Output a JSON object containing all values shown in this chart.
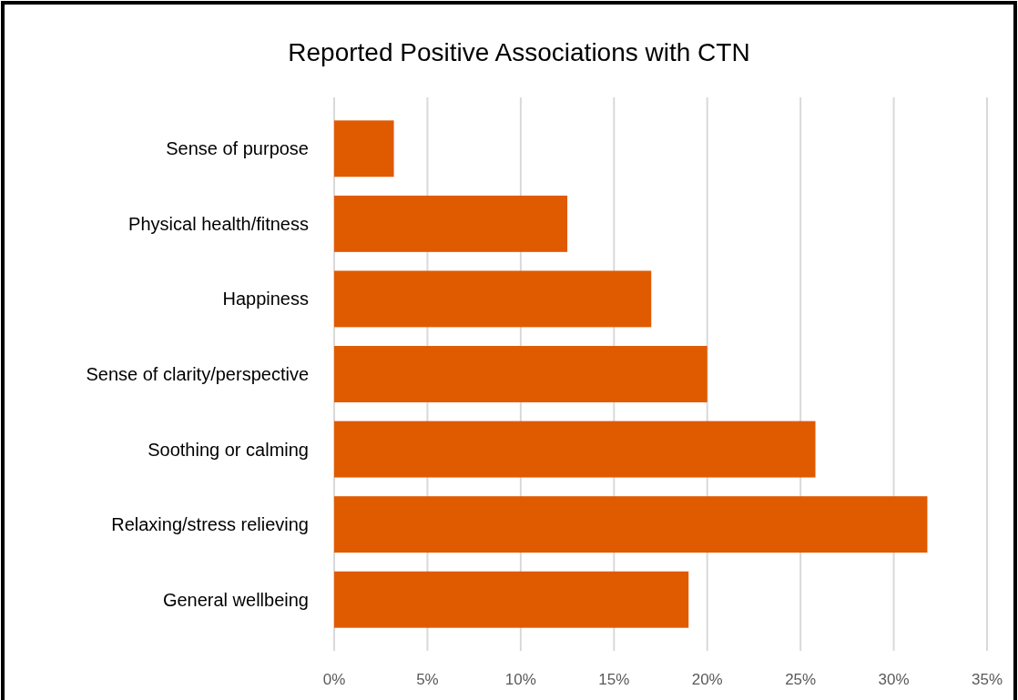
{
  "chart_data": {
    "type": "bar",
    "orientation": "horizontal",
    "title": "Reported Positive Associations with CTN",
    "categories": [
      "Sense of purpose",
      "Physical health/fitness",
      "Happiness",
      "Sense of clarity/perspective",
      "Soothing or calming",
      "Relaxing/stress relieving",
      "General wellbeing"
    ],
    "values": [
      3.2,
      12.5,
      17.0,
      20.0,
      25.8,
      31.8,
      19.0
    ],
    "color": "#e05a00",
    "xlim": [
      0,
      35
    ],
    "xticks": [
      {
        "value": 0,
        "label": "0%"
      },
      {
        "value": 5,
        "label": "5%"
      },
      {
        "value": 10,
        "label": "10%"
      },
      {
        "value": 15,
        "label": "15%"
      },
      {
        "value": 20,
        "label": "20%"
      },
      {
        "value": 25,
        "label": "25%"
      },
      {
        "value": 30,
        "label": "30%"
      },
      {
        "value": 35,
        "label": "35%"
      }
    ],
    "grid": "x"
  }
}
